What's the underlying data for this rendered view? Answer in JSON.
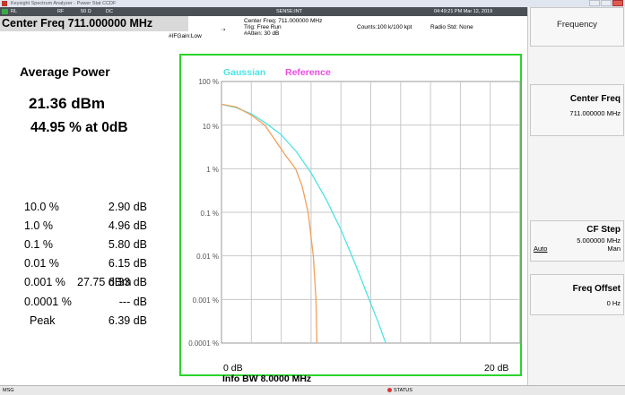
{
  "window": {
    "title": "Keysight Spectrum Analyzer - Power Stat CCDF"
  },
  "settings_bar": {
    "rl": "RL",
    "rf": "RF",
    "impedance": "50 Ω",
    "coupling": "DC",
    "sense": "SENSE:INT",
    "datetime": "04:49:21 PM Mar 12, 2019"
  },
  "measurement": {
    "title": "Center Freq 711.000000 MHz",
    "center_freq_line": "Center Freq: 711.000000 MHz",
    "trig_line": "Trig: Free Run",
    "atten_line": "#Atten: 30 dB",
    "counts_line": "Counts:100 k/100 kpt",
    "radio_std_line": "Radio Std: None",
    "gain_line": "#IFGain:Low"
  },
  "results": {
    "average_power_title": "Average Power",
    "average_power_dbm": "21.36 dBm",
    "average_power_pct": "44.95 % at 0dB",
    "stats": [
      {
        "label": "10.0 %",
        "value": "2.90 dB"
      },
      {
        "label": "1.0 %",
        "value": "4.96 dB"
      },
      {
        "label": "0.1 %",
        "value": "5.80 dB"
      },
      {
        "label": "0.01 %",
        "value": "6.15 dB"
      },
      {
        "label": "0.001 %",
        "value": "6.33 dB"
      },
      {
        "label": "0.0001 %",
        "value": "--- dB"
      },
      {
        "label": "Peak",
        "value": "6.39 dB"
      }
    ],
    "peak_dbm": "27.75 dBm"
  },
  "chart_data": {
    "type": "line",
    "legend": [
      "Gaussian",
      "Reference"
    ],
    "y_tick_labels": [
      "100 %",
      "10 %",
      "1 %",
      "0.1 %",
      "0.01 %",
      "0.001 %",
      "0.0001 %"
    ],
    "x_tick_labels": [
      "0 dB",
      "20 dB"
    ],
    "xlim": [
      0,
      20
    ],
    "ylog": true,
    "ylim_percent": [
      0.0001,
      100
    ],
    "grid": true,
    "footer_label": "Info BW 8.0000 MHz",
    "series": [
      {
        "name": "Gaussian",
        "color": "#4fe3e3",
        "x": [
          0,
          1,
          2,
          3,
          4,
          5,
          6,
          7,
          8,
          9,
          10,
          10.5,
          11
        ],
        "y": [
          30,
          25,
          18,
          11,
          6,
          2.5,
          0.8,
          0.2,
          0.04,
          0.006,
          0.0008,
          0.0003,
          0.0001
        ]
      },
      {
        "name": "Reference",
        "color": "#f2a05a",
        "x": [
          0,
          1,
          2,
          2.9,
          3.5,
          4.3,
          4.96,
          5.4,
          5.8,
          6.15,
          6.33,
          6.39
        ],
        "y": [
          30,
          26,
          17,
          10,
          5,
          2,
          1,
          0.4,
          0.1,
          0.01,
          0.001,
          0.0001
        ]
      }
    ]
  },
  "softkeys": {
    "header": "Frequency",
    "center_freq_label": "Center Freq",
    "center_freq_value": "711.000000 MHz",
    "cf_step_label": "CF Step",
    "cf_step_value": "5.000000 MHz",
    "cf_step_auto": "Auto",
    "cf_step_man": "Man",
    "freq_offset_label": "Freq Offset",
    "freq_offset_value": "0 Hz"
  },
  "statusbar": {
    "msg": "MSG",
    "status": "STATUS"
  }
}
